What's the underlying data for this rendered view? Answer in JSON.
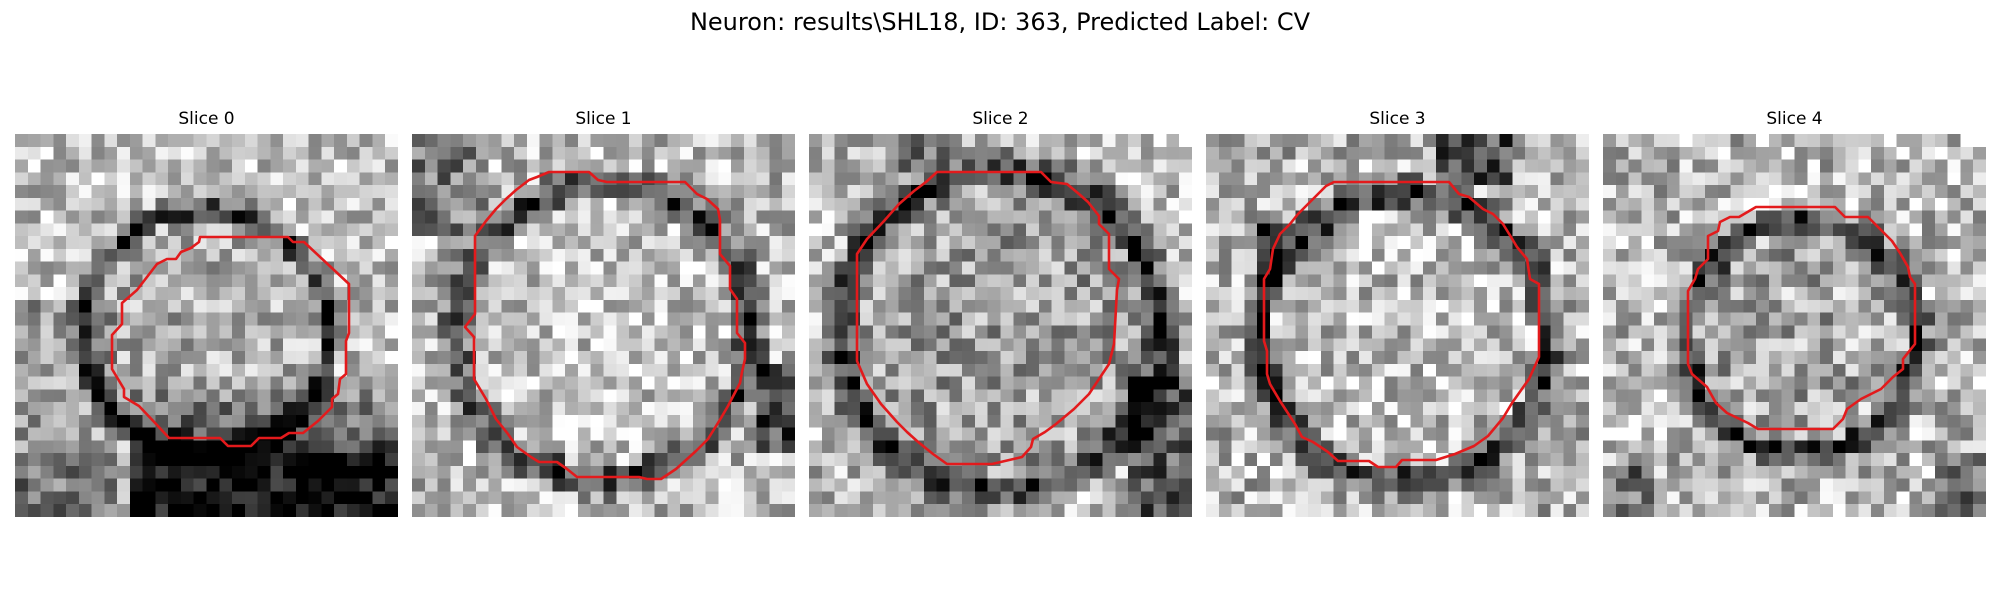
{
  "figure": {
    "title": "Neuron: results\\SHL18, ID: 363, Predicted Label: CV",
    "outline_color": "#e31a1c",
    "colormap": "gray",
    "panels": [
      {
        "title": "Slice 0"
      },
      {
        "title": "Slice 1"
      },
      {
        "title": "Slice 2"
      },
      {
        "title": "Slice 3"
      },
      {
        "title": "Slice 4"
      }
    ]
  }
}
